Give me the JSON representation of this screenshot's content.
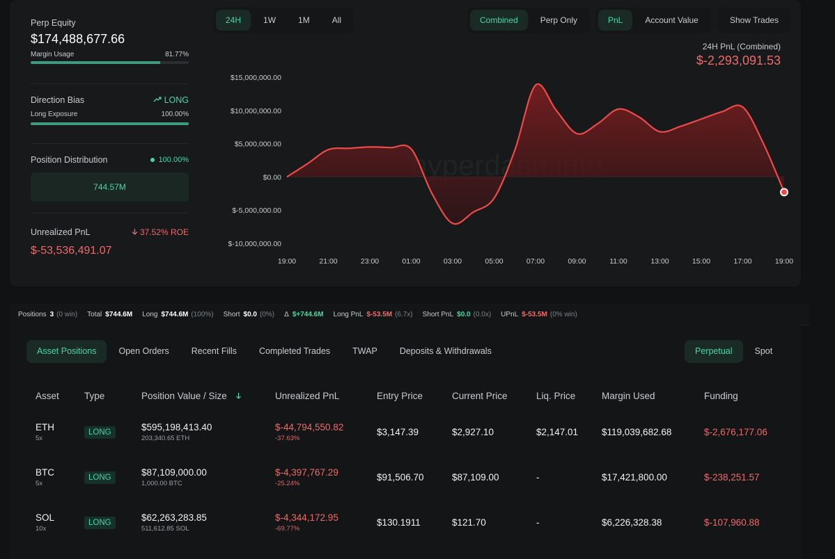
{
  "left_panel": {
    "perp_equity_label": "Perp Equity",
    "perp_equity_value": "$174,488,677.66",
    "margin_usage_label": "Margin Usage",
    "margin_usage_value": "81.77%",
    "margin_usage_fraction": 0.8177,
    "direction_bias_label": "Direction Bias",
    "direction_bias_value": "LONG",
    "long_exposure_label": "Long Exposure",
    "long_exposure_value": "100.00%",
    "long_exposure_fraction": 1.0,
    "position_distribution_label": "Position Distribution",
    "position_distribution_value": "100.00%",
    "position_distribution_amount": "744.57M",
    "unrealized_pnl_label": "Unrealized PnL",
    "unrealized_pnl_roe": "37.52% ROE",
    "unrealized_pnl_value": "$-53,536,491.07"
  },
  "timeframe_tabs": [
    "24H",
    "1W",
    "1M",
    "All"
  ],
  "timeframe_selected": "24H",
  "mode_tabs": [
    "Combined",
    "Perp Only"
  ],
  "mode_selected": "Combined",
  "metric_tabs": [
    "PnL",
    "Account Value"
  ],
  "metric_selected": "PnL",
  "show_trades_label": "Show Trades",
  "chart_header": {
    "label": "24H PnL (Combined)",
    "value": "$-2,293,091.53"
  },
  "watermark": "hyperdash.info",
  "chart_data": {
    "type": "area",
    "title": "",
    "xlabel": "",
    "ylabel": "",
    "x": [
      "19:00",
      "20:00",
      "21:00",
      "22:00",
      "23:00",
      "00:00",
      "01:00",
      "02:00",
      "03:00",
      "04:00",
      "05:00",
      "06:00",
      "07:00",
      "08:00",
      "09:00",
      "10:00",
      "11:00",
      "12:00",
      "13:00",
      "14:00",
      "15:00",
      "16:00",
      "17:00",
      "18:00",
      "19:00"
    ],
    "x_tick_labels": [
      "19:00",
      "21:00",
      "23:00",
      "01:00",
      "03:00",
      "05:00",
      "07:00",
      "09:00",
      "11:00",
      "13:00",
      "15:00",
      "17:00",
      "19:00"
    ],
    "series": [
      {
        "values": [
          0,
          2000000,
          4100000,
          4300000,
          4500000,
          4400000,
          4200000,
          -2500000,
          -7000000,
          -5300000,
          -3200000,
          4000000,
          13800000,
          10000000,
          6500000,
          8000000,
          10200000,
          9000000,
          6800000,
          7600000,
          8700000,
          9800000,
          10500000,
          5000000,
          -2293091.53
        ],
        "color": "#ee4a4a"
      }
    ],
    "y_tick_labels": [
      "$15,000,000.00",
      "$10,000,000.00",
      "$5,000,000.00",
      "$0.00",
      "$-5,000,000.00",
      "$-10,000,000.00"
    ],
    "y_ticks": [
      15000000,
      10000000,
      5000000,
      0,
      -5000000,
      -10000000
    ],
    "ylim": [
      -10000000,
      15000000
    ],
    "grid": false,
    "last_point_marker": true
  },
  "stats_strip": [
    {
      "label": "Positions",
      "value": "3",
      "extra": "(0 win)"
    },
    {
      "label": "Total",
      "value": "$744.6M",
      "extra": ""
    },
    {
      "label": "Long",
      "value": "$744.6M",
      "extra": "(100%)"
    },
    {
      "label": "Short",
      "value": "$0.0",
      "extra": "(0%)"
    },
    {
      "label": "Δ",
      "value": "$+744.6M",
      "extra": ""
    },
    {
      "label": "Long PnL",
      "value": "$-53.5M",
      "extra": "(6.7x)"
    },
    {
      "label": "Short PnL",
      "value": "$0.0",
      "extra": "(0.0x)"
    },
    {
      "label": "UPnL",
      "value": "$-53.5M",
      "extra": "(0% win)"
    }
  ],
  "positions_tabs": [
    "Asset Positions",
    "Open Orders",
    "Recent Fills",
    "Completed Trades",
    "TWAP",
    "Deposits & Withdrawals"
  ],
  "positions_tab_selected": "Asset Positions",
  "market_tabs": [
    "Perpetual",
    "Spot"
  ],
  "market_tab_selected": "Perpetual",
  "table": {
    "headers": [
      "Asset",
      "Type",
      "Position Value / Size",
      "Unrealized PnL",
      "Entry Price",
      "Current Price",
      "Liq. Price",
      "Margin Used",
      "Funding"
    ],
    "rows": [
      {
        "asset": "ETH",
        "leverage": "5x",
        "type": "LONG",
        "value": "$595,198,413.40",
        "size": "203,340.65 ETH",
        "upnl": "$-44,794,550.82",
        "upnl_pct": "-37.63%",
        "entry": "$3,147.39",
        "current": "$2,927.10",
        "liq": "$2,147.01",
        "margin": "$119,039,682.68",
        "funding": "$-2,676,177.06"
      },
      {
        "asset": "BTC",
        "leverage": "5x",
        "type": "LONG",
        "value": "$87,109,000.00",
        "size": "1,000.00 BTC",
        "upnl": "$-4,397,767.29",
        "upnl_pct": "-25.24%",
        "entry": "$91,506.70",
        "current": "$87,109.00",
        "liq": "-",
        "margin": "$17,421,800.00",
        "funding": "$-238,251.57"
      },
      {
        "asset": "SOL",
        "leverage": "10x",
        "type": "LONG",
        "value": "$62,263,283.85",
        "size": "511,612.85 SOL",
        "upnl": "$-4,344,172.95",
        "upnl_pct": "-69.77%",
        "entry": "$130.1911",
        "current": "$121.70",
        "liq": "-",
        "margin": "$6,226,328.38",
        "funding": "$-107,960.88"
      }
    ]
  }
}
